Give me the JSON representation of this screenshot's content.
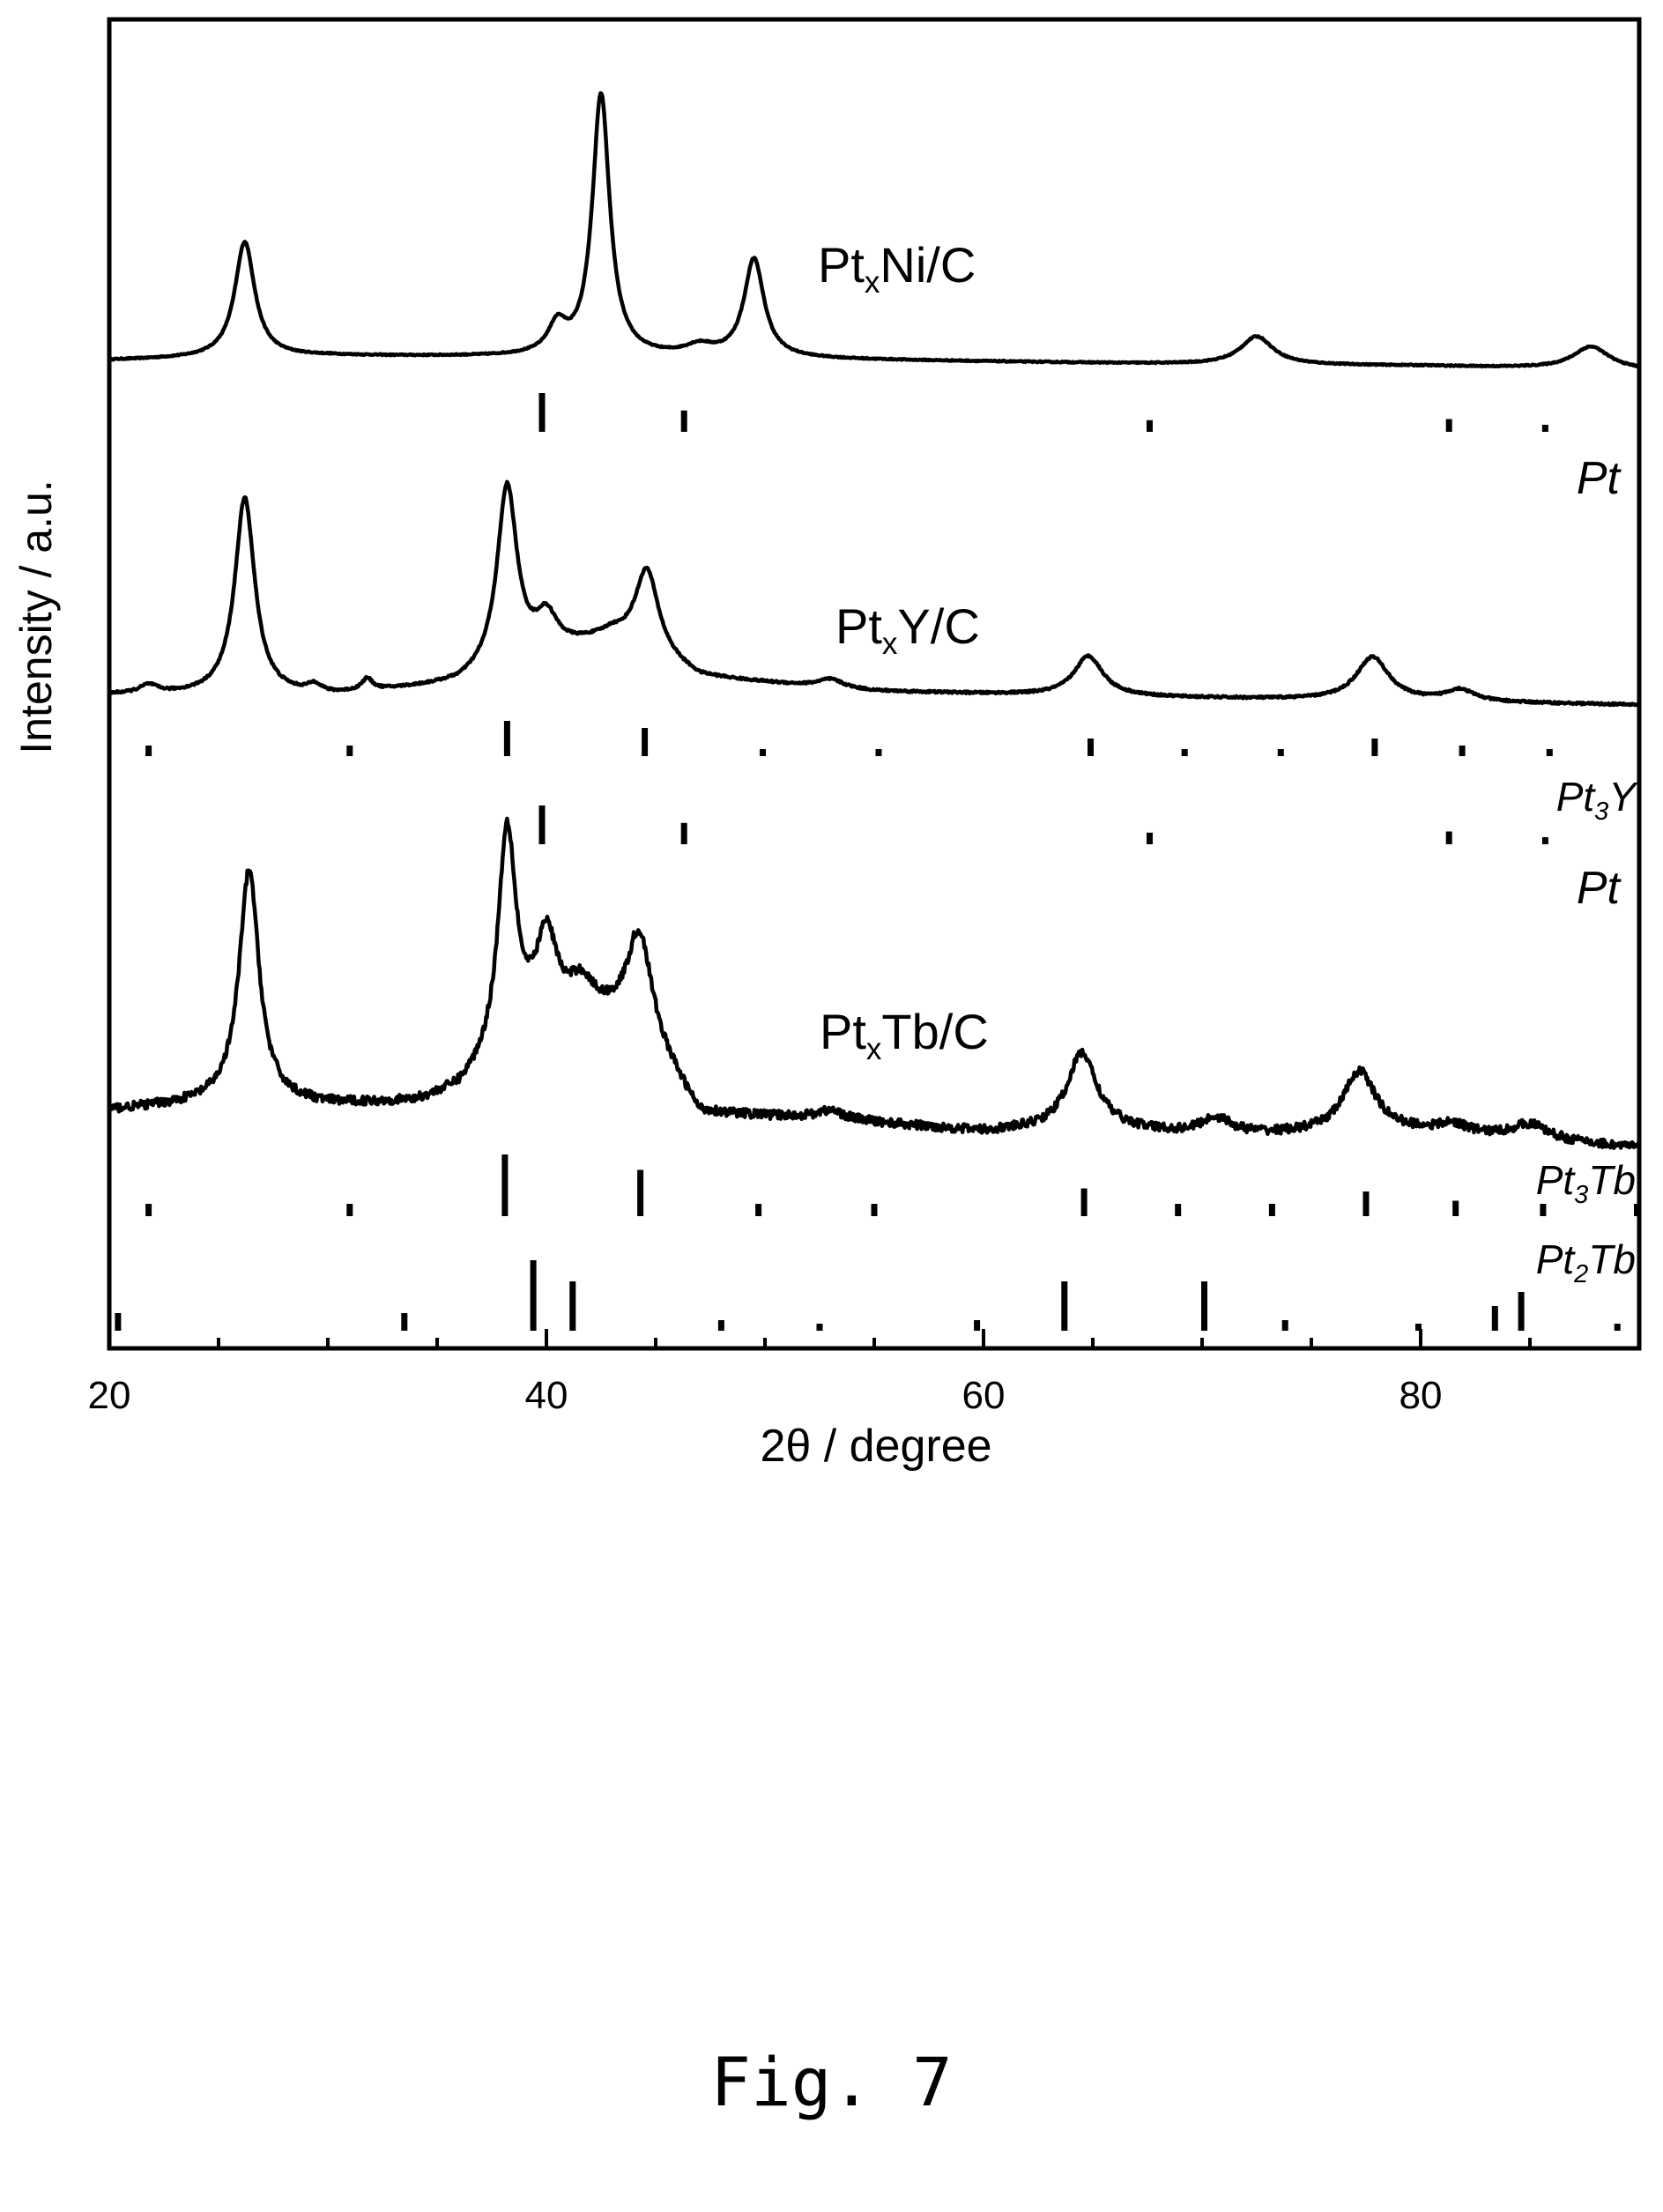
{
  "figure_label": "Fig. 7",
  "chart_data": {
    "type": "line",
    "xlabel": "2θ / degree",
    "ylabel": "Intensity / a.u.",
    "xlim": [
      20,
      90
    ],
    "xticks": [
      20,
      40,
      60,
      80
    ],
    "yticks": "none",
    "grid": false,
    "legend": "none",
    "series": [
      {
        "name": "PtxNi/C",
        "label_main": "Pt",
        "label_sub": "x",
        "label_rest": "Ni/C",
        "baseline": [
          [
            20,
            0.07
          ],
          [
            30,
            0.1
          ],
          [
            40,
            0.09
          ],
          [
            50,
            0.08
          ],
          [
            60,
            0.06
          ],
          [
            70,
            0.04
          ],
          [
            80,
            0.03
          ],
          [
            90,
            0.0
          ]
        ],
        "peaks": [
          {
            "x": 26.2,
            "height": 0.82,
            "width": 0.55
          },
          {
            "x": 40.5,
            "height": 0.2,
            "width": 0.5
          },
          {
            "x": 42.5,
            "height": 1.86,
            "width": 0.48
          },
          {
            "x": 47.0,
            "height": 0.07,
            "width": 0.8
          },
          {
            "x": 49.5,
            "height": 0.7,
            "width": 0.55
          },
          {
            "x": 72.5,
            "height": 0.2,
            "width": 0.9
          },
          {
            "x": 87.8,
            "height": 0.16,
            "width": 1.0
          }
        ],
        "noise": 0.004
      },
      {
        "name": "PtxY/C",
        "label_main": "Pt",
        "label_sub": "x",
        "label_rest": "Y/C",
        "baseline": [
          [
            20,
            0.06
          ],
          [
            30,
            0.05
          ],
          [
            36,
            0.12
          ],
          [
            40,
            0.3
          ],
          [
            43,
            0.4
          ],
          [
            47,
            0.16
          ],
          [
            55,
            0.08
          ],
          [
            65,
            0.05
          ],
          [
            75,
            0.03
          ],
          [
            90,
            0.0
          ]
        ],
        "peaks": [
          {
            "x": 21.8,
            "height": 0.05,
            "width": 0.5
          },
          {
            "x": 26.2,
            "height": 1.18,
            "width": 0.55
          },
          {
            "x": 29.4,
            "height": 0.05,
            "width": 0.4
          },
          {
            "x": 31.8,
            "height": 0.07,
            "width": 0.3
          },
          {
            "x": 38.2,
            "height": 1.08,
            "width": 0.55
          },
          {
            "x": 40.0,
            "height": 0.2,
            "width": 0.6
          },
          {
            "x": 44.6,
            "height": 0.5,
            "width": 0.65
          },
          {
            "x": 53.0,
            "height": 0.05,
            "width": 0.7
          },
          {
            "x": 64.8,
            "height": 0.24,
            "width": 0.8
          },
          {
            "x": 77.8,
            "height": 0.26,
            "width": 0.9
          },
          {
            "x": 81.8,
            "height": 0.07,
            "width": 0.8
          }
        ],
        "noise": 0.006
      },
      {
        "name": "PtxTb/C",
        "label_main": "Pt",
        "label_sub": "x",
        "label_rest": "Tb/C",
        "baseline": [
          [
            20,
            0.12
          ],
          [
            26,
            0.16
          ],
          [
            30,
            0.14
          ],
          [
            34,
            0.15
          ],
          [
            36,
            0.2
          ],
          [
            40,
            0.5
          ],
          [
            44,
            0.55
          ],
          [
            47,
            0.1
          ],
          [
            52,
            0.08
          ],
          [
            55,
            0.06
          ],
          [
            60,
            0.02
          ],
          [
            65,
            0.04
          ],
          [
            70,
            0.0
          ],
          [
            80,
            0.02
          ],
          [
            90,
            -0.05
          ]
        ],
        "peaks": [
          {
            "x": 26.4,
            "height": 1.05,
            "width": 0.55
          },
          {
            "x": 38.2,
            "height": 1.02,
            "width": 0.5
          },
          {
            "x": 40.0,
            "height": 0.38,
            "width": 0.6
          },
          {
            "x": 41.6,
            "height": 0.15,
            "width": 0.7
          },
          {
            "x": 44.3,
            "height": 0.4,
            "width": 0.65
          },
          {
            "x": 53.0,
            "height": 0.04,
            "width": 0.8
          },
          {
            "x": 64.5,
            "height": 0.34,
            "width": 0.8
          },
          {
            "x": 70.6,
            "height": 0.08,
            "width": 0.9
          },
          {
            "x": 77.2,
            "height": 0.28,
            "width": 0.9
          },
          {
            "x": 81.5,
            "height": 0.04,
            "width": 0.8
          },
          {
            "x": 85.0,
            "height": 0.07,
            "width": 1.0
          }
        ],
        "noise": 0.02
      }
    ],
    "references": [
      {
        "name": "Pt",
        "label_main": "Pt",
        "label_sub": "",
        "lines": [
          [
            39.8,
            1.0
          ],
          [
            46.3,
            0.55
          ],
          [
            67.6,
            0.3
          ],
          [
            81.3,
            0.33
          ],
          [
            85.7,
            0.1
          ]
        ]
      },
      {
        "name": "Pt3Y",
        "label_main": "Pt",
        "label_sub": "3",
        "label_rest": "Y",
        "lines": [
          [
            21.8,
            0.3
          ],
          [
            31.0,
            0.3
          ],
          [
            38.2,
            1.0
          ],
          [
            44.5,
            0.8
          ],
          [
            49.9,
            0.2
          ],
          [
            55.2,
            0.2
          ],
          [
            64.9,
            0.5
          ],
          [
            69.2,
            0.2
          ],
          [
            73.6,
            0.2
          ],
          [
            77.9,
            0.5
          ],
          [
            81.9,
            0.3
          ],
          [
            85.9,
            0.2
          ]
        ]
      },
      {
        "name": "Pt",
        "label_main": "Pt",
        "label_sub": "",
        "lines": [
          [
            39.8,
            1.0
          ],
          [
            46.3,
            0.55
          ],
          [
            67.6,
            0.3
          ],
          [
            81.3,
            0.33
          ],
          [
            85.7,
            0.1
          ]
        ]
      },
      {
        "name": "Pt3Tb",
        "label_main": "Pt",
        "label_sub": "3",
        "label_rest": "Tb",
        "lines": [
          [
            21.8,
            0.2
          ],
          [
            31.0,
            0.2
          ],
          [
            38.1,
            1.0
          ],
          [
            44.3,
            0.75
          ],
          [
            49.7,
            0.2
          ],
          [
            55.0,
            0.2
          ],
          [
            64.6,
            0.45
          ],
          [
            68.9,
            0.2
          ],
          [
            73.2,
            0.2
          ],
          [
            77.5,
            0.4
          ],
          [
            81.6,
            0.25
          ],
          [
            85.6,
            0.2
          ],
          [
            89.9,
            0.2
          ]
        ]
      },
      {
        "name": "Pt2Tb",
        "label_main": "Pt",
        "label_sub": "2",
        "label_rest": "Tb",
        "lines": [
          [
            20.4,
            0.25
          ],
          [
            33.5,
            0.25
          ],
          [
            39.4,
            1.0
          ],
          [
            41.2,
            0.7
          ],
          [
            48.0,
            0.15
          ],
          [
            52.5,
            0.05
          ],
          [
            59.7,
            0.15
          ],
          [
            63.7,
            0.7
          ],
          [
            70.1,
            0.7
          ],
          [
            73.8,
            0.15
          ],
          [
            79.9,
            0.05
          ],
          [
            83.4,
            0.35
          ],
          [
            84.6,
            0.55
          ],
          [
            89.0,
            0.1
          ]
        ]
      }
    ]
  }
}
